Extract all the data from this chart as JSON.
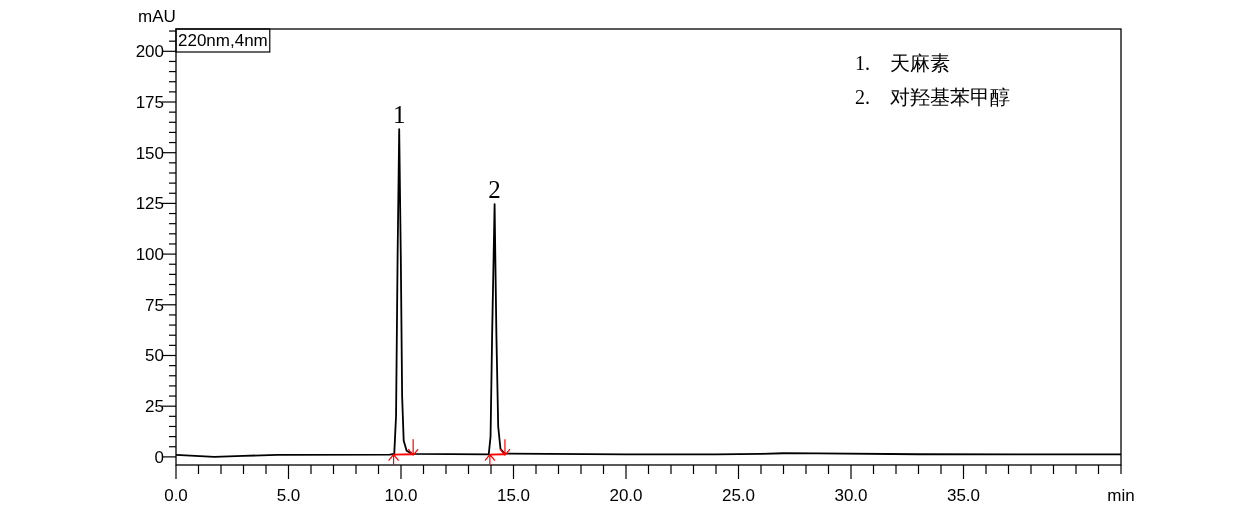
{
  "chart_data": {
    "type": "line",
    "ylabel": "mAU",
    "xlabel": "min",
    "xlim": [
      0,
      42
    ],
    "ylim": [
      -4,
      211
    ],
    "xticks": [
      {
        "value": 0,
        "label": "0.0"
      },
      {
        "value": 1,
        "label": null
      },
      {
        "value": 2,
        "label": null
      },
      {
        "value": 3,
        "label": null
      },
      {
        "value": 4,
        "label": null
      },
      {
        "value": 5,
        "label": "5.0"
      },
      {
        "value": 6,
        "label": null
      },
      {
        "value": 7,
        "label": null
      },
      {
        "value": 8,
        "label": null
      },
      {
        "value": 9,
        "label": null
      },
      {
        "value": 10,
        "label": "10.0"
      },
      {
        "value": 11,
        "label": null
      },
      {
        "value": 12,
        "label": null
      },
      {
        "value": 13,
        "label": null
      },
      {
        "value": 14,
        "label": null
      },
      {
        "value": 15,
        "label": "15.0"
      },
      {
        "value": 16,
        "label": null
      },
      {
        "value": 17,
        "label": null
      },
      {
        "value": 18,
        "label": null
      },
      {
        "value": 19,
        "label": null
      },
      {
        "value": 20,
        "label": "20.0"
      },
      {
        "value": 21,
        "label": null
      },
      {
        "value": 22,
        "label": null
      },
      {
        "value": 23,
        "label": null
      },
      {
        "value": 24,
        "label": null
      },
      {
        "value": 25,
        "label": "25.0"
      },
      {
        "value": 26,
        "label": null
      },
      {
        "value": 27,
        "label": null
      },
      {
        "value": 28,
        "label": null
      },
      {
        "value": 29,
        "label": null
      },
      {
        "value": 30,
        "label": "30.0"
      },
      {
        "value": 31,
        "label": null
      },
      {
        "value": 32,
        "label": null
      },
      {
        "value": 33,
        "label": null
      },
      {
        "value": 34,
        "label": null
      },
      {
        "value": 35,
        "label": "35.0"
      },
      {
        "value": 36,
        "label": null
      },
      {
        "value": 37,
        "label": null
      },
      {
        "value": 38,
        "label": null
      },
      {
        "value": 39,
        "label": null
      },
      {
        "value": 40,
        "label": null
      },
      {
        "value": 41,
        "label": null
      },
      {
        "value": 42,
        "label": null
      }
    ],
    "yticks": [
      0,
      {
        "value": 5,
        "label": null
      },
      {
        "value": 10,
        "label": null
      },
      {
        "value": 15,
        "label": null
      },
      {
        "value": 20,
        "label": null
      },
      25,
      {
        "value": 30,
        "label": null
      },
      {
        "value": 35,
        "label": null
      },
      {
        "value": 40,
        "label": null
      },
      {
        "value": 45,
        "label": null
      },
      50,
      {
        "value": 55,
        "label": null
      },
      {
        "value": 60,
        "label": null
      },
      {
        "value": 65,
        "label": null
      },
      {
        "value": 70,
        "label": null
      },
      75,
      {
        "value": 80,
        "label": null
      },
      {
        "value": 85,
        "label": null
      },
      {
        "value": 90,
        "label": null
      },
      {
        "value": 95,
        "label": null
      },
      100,
      {
        "value": 105,
        "label": null
      },
      {
        "value": 110,
        "label": null
      },
      {
        "value": 115,
        "label": null
      },
      {
        "value": 120,
        "label": null
      },
      125,
      {
        "value": 130,
        "label": null
      },
      {
        "value": 135,
        "label": null
      },
      {
        "value": 140,
        "label": null
      },
      {
        "value": 145,
        "label": null
      },
      150,
      {
        "value": 155,
        "label": null
      },
      {
        "value": 160,
        "label": null
      },
      {
        "value": 165,
        "label": null
      },
      {
        "value": 170,
        "label": null
      },
      175,
      {
        "value": 180,
        "label": null
      },
      {
        "value": 185,
        "label": null
      },
      {
        "value": 190,
        "label": null
      },
      {
        "value": 195,
        "label": null
      },
      200,
      {
        "value": 205,
        "label": null
      },
      {
        "value": 210,
        "label": null
      }
    ],
    "grid": false,
    "series": [
      {
        "color": "#000000",
        "x": [
          0,
          1.7,
          3,
          4.5,
          9.5,
          9.7,
          9.78,
          9.85,
          9.92,
          9.99,
          10.05,
          10.12,
          10.25,
          10.5,
          13.9,
          13.98,
          14.05,
          14.16,
          14.24,
          14.32,
          14.42,
          14.6,
          20,
          24,
          26,
          27,
          28.5,
          33,
          42
        ],
        "values": [
          1.0,
          0.0,
          0.5,
          1.0,
          1.1,
          1.5,
          20,
          100,
          161.6,
          100,
          30,
          8,
          3,
          1.5,
          1.2,
          10,
          60,
          124.6,
          60,
          15,
          4,
          1.6,
          1.2,
          1.2,
          1.5,
          1.8,
          1.7,
          1.3,
          1.2
        ]
      },
      {
        "type": "line",
        "color": "#ff0000",
        "x": [
          9.67,
          10.54,
          12,
          13.95,
          14.62
        ],
        "values": [
          1.1,
          1.3,
          null,
          1.1,
          1.3
        ]
      },
      {
        "type": "scatter",
        "color": "#ff0000",
        "marker": "cross",
        "x": [
          9.67,
          10.54,
          13.95,
          14.62
        ],
        "values": [
          -1.8,
          4.8,
          -1.8,
          4.8
        ]
      }
    ],
    "annotations": [
      "220nm,4nm",
      {
        "text": "1",
        "x": 9.92,
        "y": 161.6
      },
      {
        "text": "2",
        "x": 14.16,
        "y": 124.6
      },
      "1.    天麻素",
      "2.    对羟基苯甲醇"
    ]
  }
}
